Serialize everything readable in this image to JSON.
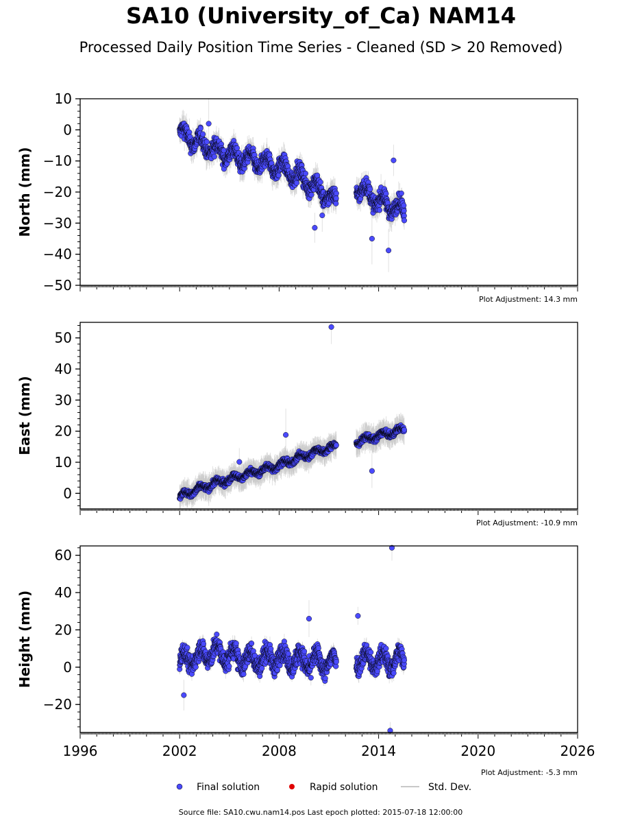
{
  "title": "SA10 (University_of_Ca) NAM14",
  "subtitle": "Processed Daily Position Time Series - Cleaned (SD > 20 Removed)",
  "source_text": "Source file: SA10.cwu.nam14.pos  Last epoch plotted: 2015-07-18 12:00:00",
  "legend": [
    {
      "label": "Final solution",
      "color": "#4a4aff"
    },
    {
      "label": "Rapid solution",
      "color": "#e00000"
    },
    {
      "label": "Std. Dev.",
      "color": "#c8c8c8"
    }
  ],
  "chart_data": [
    {
      "type": "scatter",
      "ylabel": "North (mm)",
      "adjustment": "Plot Adjustment: 14.3 mm",
      "xlim": [
        1996,
        2026
      ],
      "ylim": [
        -50,
        10
      ],
      "yticks": [
        10,
        0,
        -10,
        -20,
        -30,
        -40,
        -50
      ],
      "ytick_labels": [
        "10",
        "0",
        "−10",
        "−20",
        "−30",
        "−40",
        "−50"
      ],
      "trend": [
        [
          2002.0,
          -1
        ],
        [
          2003.5,
          -5
        ],
        [
          2005.0,
          -8
        ],
        [
          2006.5,
          -10
        ],
        [
          2008.0,
          -12
        ],
        [
          2009.5,
          -16
        ],
        [
          2011.4,
          -23
        ],
        [
          2012.6,
          -18
        ],
        [
          2014.0,
          -23
        ],
        [
          2015.55,
          -26
        ]
      ],
      "amplitude": 4,
      "gaps": [
        [
          2011.45,
          2012.65
        ]
      ],
      "outliers": [
        [
          2003.75,
          2
        ],
        [
          2010.15,
          -31.5
        ],
        [
          2010.6,
          -27.5
        ],
        [
          2013.6,
          -35
        ],
        [
          2014.6,
          -38.8
        ],
        [
          2014.9,
          -9.8
        ]
      ]
    },
    {
      "type": "scatter",
      "ylabel": "East (mm)",
      "adjustment": "Plot Adjustment: -10.9 mm",
      "xlim": [
        1996,
        2026
      ],
      "ylim": [
        -5,
        55
      ],
      "yticks": [
        0,
        10,
        20,
        30,
        40,
        50
      ],
      "ytick_labels": [
        "0",
        "10",
        "20",
        "30",
        "40",
        "50"
      ],
      "trend": [
        [
          2002.0,
          -1
        ],
        [
          2004.0,
          3
        ],
        [
          2006.0,
          6
        ],
        [
          2008.0,
          9
        ],
        [
          2010.0,
          13
        ],
        [
          2011.4,
          15
        ],
        [
          2012.6,
          16.5
        ],
        [
          2014.0,
          18.5
        ],
        [
          2015.55,
          20.5
        ]
      ],
      "amplitude": 1.5,
      "gaps": [
        [
          2011.45,
          2012.65
        ]
      ],
      "outliers": [
        [
          2011.15,
          53.5
        ],
        [
          2008.4,
          18.8
        ],
        [
          2013.6,
          7.2
        ],
        [
          2005.6,
          10.1
        ]
      ]
    },
    {
      "type": "scatter",
      "ylabel": "Height (mm)",
      "adjustment": "Plot Adjustment: -5.3 mm",
      "xlim": [
        1996,
        2026
      ],
      "ylim": [
        -35,
        65
      ],
      "yticks": [
        60,
        40,
        20,
        0,
        -20
      ],
      "ytick_labels": [
        "60",
        "40",
        "20",
        "0",
        "−20"
      ],
      "xticks": [
        1996,
        2002,
        2008,
        2014,
        2020,
        2026
      ],
      "xtick_labels": [
        "1996",
        "2002",
        "2008",
        "2014",
        "2020",
        "2026"
      ],
      "trend": [
        [
          2002.0,
          3
        ],
        [
          2004.0,
          8
        ],
        [
          2006.0,
          4
        ],
        [
          2008.0,
          5
        ],
        [
          2010.0,
          3
        ],
        [
          2011.4,
          2
        ],
        [
          2012.6,
          5
        ],
        [
          2014.0,
          3
        ],
        [
          2015.55,
          4
        ]
      ],
      "amplitude": 8,
      "gaps": [
        [
          2011.45,
          2012.65
        ]
      ],
      "outliers": [
        [
          2014.8,
          64
        ],
        [
          2014.7,
          -34
        ],
        [
          2009.8,
          26
        ],
        [
          2012.75,
          27.5
        ],
        [
          2002.25,
          -15
        ]
      ]
    }
  ]
}
